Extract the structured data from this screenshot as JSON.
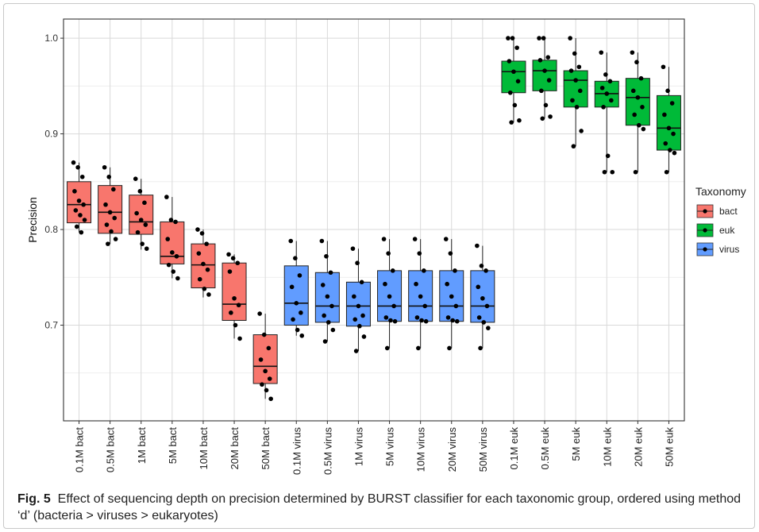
{
  "chart_data": {
    "type": "box",
    "title": "",
    "xlabel": "",
    "ylabel": "Precision",
    "ylim": [
      0.6,
      1.02
    ],
    "yticks": [
      0.7,
      0.8,
      0.9,
      1.0
    ],
    "ytick_labels": [
      "0.7",
      "0.8",
      "0.9",
      "1.0"
    ],
    "grid": true,
    "legend": {
      "title": "Taxonomy",
      "placement": "right",
      "entries": [
        {
          "label": "bact",
          "color": "#F8766D"
        },
        {
          "label": "euk",
          "color": "#00BA38"
        },
        {
          "label": "virus",
          "color": "#619CFF"
        }
      ]
    },
    "categories": [
      "0.1M bact",
      "0.5M bact",
      "1M bact",
      "5M bact",
      "10M bact",
      "20M bact",
      "50M bact",
      "0.1M virus",
      "0.5M virus",
      "1M virus",
      "5M virus",
      "10M virus",
      "20M virus",
      "50M virus",
      "0.1M euk",
      "0.5M euk",
      "5M euk",
      "10M euk",
      "20M euk",
      "50M euk"
    ],
    "groups": [
      "bact",
      "bact",
      "bact",
      "bact",
      "bact",
      "bact",
      "bact",
      "virus",
      "virus",
      "virus",
      "virus",
      "virus",
      "virus",
      "virus",
      "euk",
      "euk",
      "euk",
      "euk",
      "euk",
      "euk"
    ],
    "boxes": [
      {
        "q1": 0.807,
        "median": 0.826,
        "q3": 0.85,
        "min": 0.797,
        "max": 0.87,
        "points": [
          0.87,
          0.865,
          0.855,
          0.84,
          0.83,
          0.826,
          0.82,
          0.815,
          0.81,
          0.803,
          0.797
        ]
      },
      {
        "q1": 0.796,
        "median": 0.818,
        "q3": 0.846,
        "min": 0.785,
        "max": 0.865,
        "points": [
          0.865,
          0.855,
          0.842,
          0.826,
          0.818,
          0.812,
          0.805,
          0.798,
          0.79,
          0.785
        ]
      },
      {
        "q1": 0.795,
        "median": 0.808,
        "q3": 0.836,
        "min": 0.779,
        "max": 0.853,
        "points": [
          0.853,
          0.84,
          0.828,
          0.817,
          0.81,
          0.805,
          0.797,
          0.785,
          0.78
        ]
      },
      {
        "q1": 0.764,
        "median": 0.772,
        "q3": 0.808,
        "min": 0.749,
        "max": 0.834,
        "points": [
          0.834,
          0.81,
          0.808,
          0.79,
          0.776,
          0.772,
          0.763,
          0.756,
          0.749
        ]
      },
      {
        "q1": 0.739,
        "median": 0.763,
        "q3": 0.785,
        "min": 0.729,
        "max": 0.8,
        "points": [
          0.8,
          0.796,
          0.785,
          0.775,
          0.764,
          0.758,
          0.748,
          0.738,
          0.732
        ]
      },
      {
        "q1": 0.705,
        "median": 0.722,
        "q3": 0.765,
        "min": 0.686,
        "max": 0.774,
        "points": [
          0.774,
          0.77,
          0.765,
          0.756,
          0.728,
          0.721,
          0.713,
          0.7,
          0.686
        ]
      },
      {
        "q1": 0.639,
        "median": 0.657,
        "q3": 0.69,
        "min": 0.623,
        "max": 0.712,
        "points": [
          0.712,
          0.69,
          0.676,
          0.664,
          0.652,
          0.644,
          0.638,
          0.632,
          0.623
        ]
      },
      {
        "q1": 0.7,
        "median": 0.723,
        "q3": 0.762,
        "min": 0.689,
        "max": 0.788,
        "points": [
          0.788,
          0.77,
          0.752,
          0.74,
          0.723,
          0.713,
          0.706,
          0.695,
          0.689
        ]
      },
      {
        "q1": 0.703,
        "median": 0.72,
        "q3": 0.755,
        "min": 0.683,
        "max": 0.788,
        "points": [
          0.788,
          0.772,
          0.755,
          0.742,
          0.73,
          0.72,
          0.71,
          0.703,
          0.695,
          0.683
        ]
      },
      {
        "q1": 0.699,
        "median": 0.72,
        "q3": 0.745,
        "min": 0.673,
        "max": 0.78,
        "points": [
          0.78,
          0.765,
          0.745,
          0.73,
          0.72,
          0.71,
          0.706,
          0.699,
          0.688,
          0.673
        ]
      },
      {
        "q1": 0.704,
        "median": 0.72,
        "q3": 0.757,
        "min": 0.676,
        "max": 0.79,
        "points": [
          0.79,
          0.775,
          0.757,
          0.743,
          0.73,
          0.72,
          0.708,
          0.705,
          0.704,
          0.676
        ]
      },
      {
        "q1": 0.704,
        "median": 0.72,
        "q3": 0.757,
        "min": 0.676,
        "max": 0.79,
        "points": [
          0.79,
          0.775,
          0.757,
          0.743,
          0.73,
          0.72,
          0.708,
          0.705,
          0.704,
          0.676
        ]
      },
      {
        "q1": 0.704,
        "median": 0.72,
        "q3": 0.757,
        "min": 0.676,
        "max": 0.79,
        "points": [
          0.79,
          0.775,
          0.757,
          0.743,
          0.73,
          0.72,
          0.708,
          0.705,
          0.704,
          0.676
        ]
      },
      {
        "q1": 0.703,
        "median": 0.72,
        "q3": 0.757,
        "min": 0.676,
        "max": 0.783,
        "points": [
          0.783,
          0.762,
          0.757,
          0.74,
          0.728,
          0.72,
          0.708,
          0.703,
          0.697,
          0.676
        ]
      },
      {
        "q1": 0.943,
        "median": 0.965,
        "q3": 0.976,
        "min": 0.912,
        "max": 1.0,
        "points": [
          1.0,
          1.0,
          0.99,
          0.976,
          0.965,
          0.955,
          0.943,
          0.93,
          0.914,
          0.912
        ]
      },
      {
        "q1": 0.945,
        "median": 0.966,
        "q3": 0.977,
        "min": 0.916,
        "max": 1.0,
        "points": [
          1.0,
          1.0,
          0.98,
          0.977,
          0.966,
          0.956,
          0.945,
          0.93,
          0.918,
          0.916
        ]
      },
      {
        "q1": 0.928,
        "median": 0.956,
        "q3": 0.966,
        "min": 0.887,
        "max": 1.0,
        "points": [
          1.0,
          0.984,
          0.97,
          0.966,
          0.956,
          0.945,
          0.935,
          0.928,
          0.903,
          0.887
        ]
      },
      {
        "q1": 0.928,
        "median": 0.942,
        "q3": 0.955,
        "min": 0.86,
        "max": 0.985,
        "points": [
          0.985,
          0.962,
          0.955,
          0.948,
          0.942,
          0.935,
          0.928,
          0.877,
          0.86,
          0.86
        ]
      },
      {
        "q1": 0.909,
        "median": 0.938,
        "q3": 0.958,
        "min": 0.86,
        "max": 0.985,
        "points": [
          0.985,
          0.975,
          0.958,
          0.945,
          0.938,
          0.928,
          0.92,
          0.909,
          0.905,
          0.86
        ]
      },
      {
        "q1": 0.883,
        "median": 0.906,
        "q3": 0.94,
        "min": 0.86,
        "max": 0.97,
        "points": [
          0.97,
          0.945,
          0.932,
          0.92,
          0.906,
          0.9,
          0.89,
          0.883,
          0.88,
          0.86
        ]
      }
    ]
  },
  "caption": {
    "label": "Fig. 5",
    "text": "Effect of sequencing depth on precision determined by BURST classifier for each taxonomic group, ordered using method ‘d’ (bacteria > viruses > eukaryotes)"
  }
}
